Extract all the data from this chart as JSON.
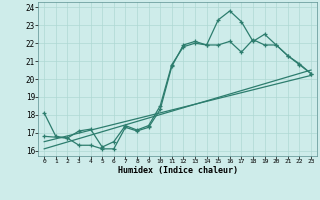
{
  "line1_x": [
    0,
    1,
    2,
    3,
    4,
    5,
    6,
    7,
    8,
    9,
    10,
    11,
    12,
    13,
    14,
    15,
    16,
    17,
    18,
    19,
    20,
    21,
    22,
    23
  ],
  "line1_y": [
    18.1,
    16.8,
    16.7,
    16.3,
    16.3,
    16.1,
    16.1,
    17.3,
    17.1,
    17.3,
    18.3,
    20.7,
    21.9,
    22.1,
    21.9,
    23.3,
    23.8,
    23.2,
    22.1,
    22.5,
    21.9,
    21.3,
    20.8,
    20.3
  ],
  "line2_x": [
    0,
    2,
    3,
    4,
    5,
    6,
    7,
    8,
    9,
    10,
    11,
    12,
    13,
    14,
    15,
    16,
    17,
    18,
    19,
    20,
    21,
    22,
    23
  ],
  "line2_y": [
    16.8,
    16.7,
    17.1,
    17.2,
    16.2,
    16.5,
    17.4,
    17.15,
    17.4,
    18.5,
    20.8,
    21.8,
    22.0,
    21.9,
    21.9,
    22.1,
    21.5,
    22.2,
    21.9,
    21.9,
    21.3,
    20.85,
    20.3
  ],
  "line3_x": [
    0,
    23
  ],
  "line3_y": [
    16.5,
    20.2
  ],
  "line4_x": [
    0,
    23
  ],
  "line4_y": [
    16.1,
    20.5
  ],
  "line_color": "#2d7d6e",
  "bg_color": "#ceecea",
  "grid_color": "#afd8d4",
  "xlabel": "Humidex (Indice chaleur)",
  "xlim": [
    -0.5,
    23.5
  ],
  "ylim": [
    15.7,
    24.3
  ],
  "yticks": [
    16,
    17,
    18,
    19,
    20,
    21,
    22,
    23,
    24
  ],
  "xticks": [
    0,
    1,
    2,
    3,
    4,
    5,
    6,
    7,
    8,
    9,
    10,
    11,
    12,
    13,
    14,
    15,
    16,
    17,
    18,
    19,
    20,
    21,
    22,
    23
  ]
}
